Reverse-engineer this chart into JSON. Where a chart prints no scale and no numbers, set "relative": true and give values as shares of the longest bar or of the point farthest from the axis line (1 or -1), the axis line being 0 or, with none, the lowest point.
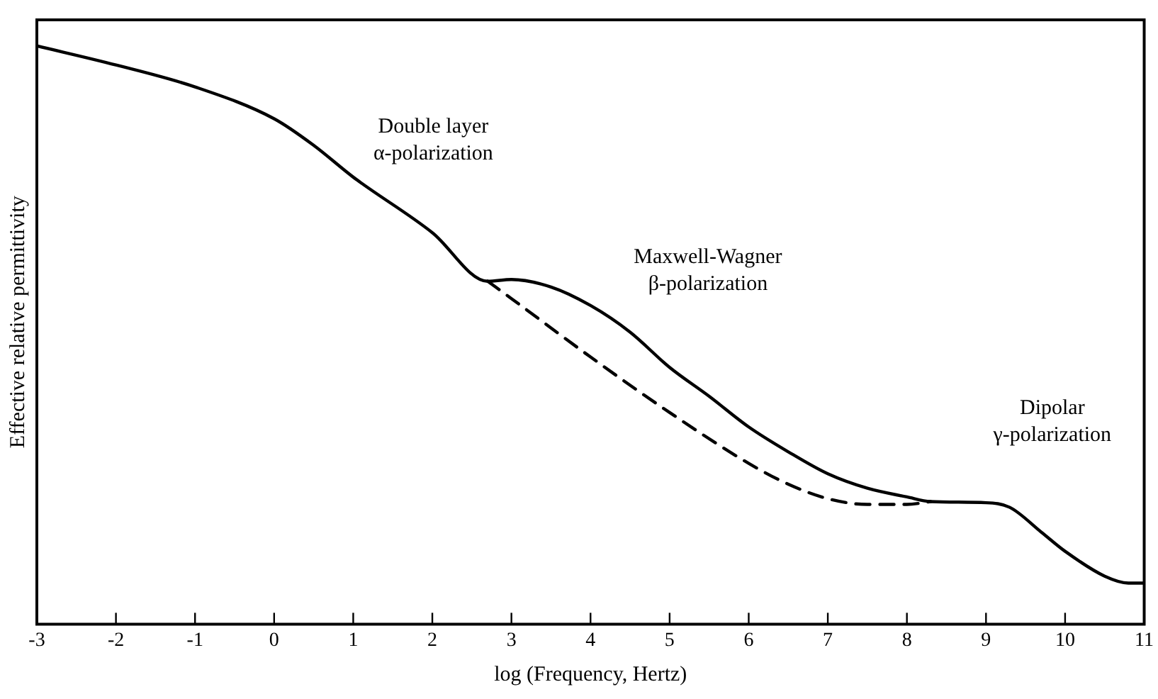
{
  "chart_data": {
    "type": "line",
    "relative": true,
    "xlabel": "log (Frequency, Hertz)",
    "ylabel": "Effective relative permittivity",
    "xlim": [
      -3,
      11
    ],
    "xticks": [
      -3,
      -2,
      -1,
      0,
      1,
      2,
      3,
      4,
      5,
      6,
      7,
      8,
      9,
      10,
      11
    ],
    "grid": false,
    "legend": false,
    "marker": "none",
    "series": [
      {
        "color": "#000000",
        "line_style": "solid",
        "x": [
          -3,
          -2,
          -1,
          0,
          0.5,
          1,
          2,
          2.7,
          3,
          3.5,
          4,
          4.5,
          5,
          5.5,
          6,
          6.5,
          7,
          7.5,
          8,
          8.3,
          9,
          9.3,
          9.7,
          10,
          10.5,
          10.8,
          11
        ],
        "values": [
          1,
          0.967,
          0.929,
          0.874,
          0.828,
          0.773,
          0.677,
          0.593,
          0.596,
          0.583,
          0.551,
          0.505,
          0.444,
          0.394,
          0.341,
          0.298,
          0.26,
          0.235,
          0.22,
          0.212,
          0.21,
          0.202,
          0.159,
          0.126,
          0.083,
          0.071,
          0.071
        ]
      },
      {
        "color": "#000000",
        "line_style": "dashed",
        "x": [
          2.7,
          3,
          4,
          5,
          6,
          6.5,
          7,
          7.5,
          8,
          8.3
        ],
        "values": [
          0.593,
          0.563,
          0.462,
          0.366,
          0.278,
          0.242,
          0.217,
          0.207,
          0.207,
          0.212
        ]
      }
    ],
    "annotations": [
      "Double layer\nα-polarization",
      "Maxwell-Wagner\nβ-polarization",
      "Dipolar\nγ-polarization"
    ]
  }
}
